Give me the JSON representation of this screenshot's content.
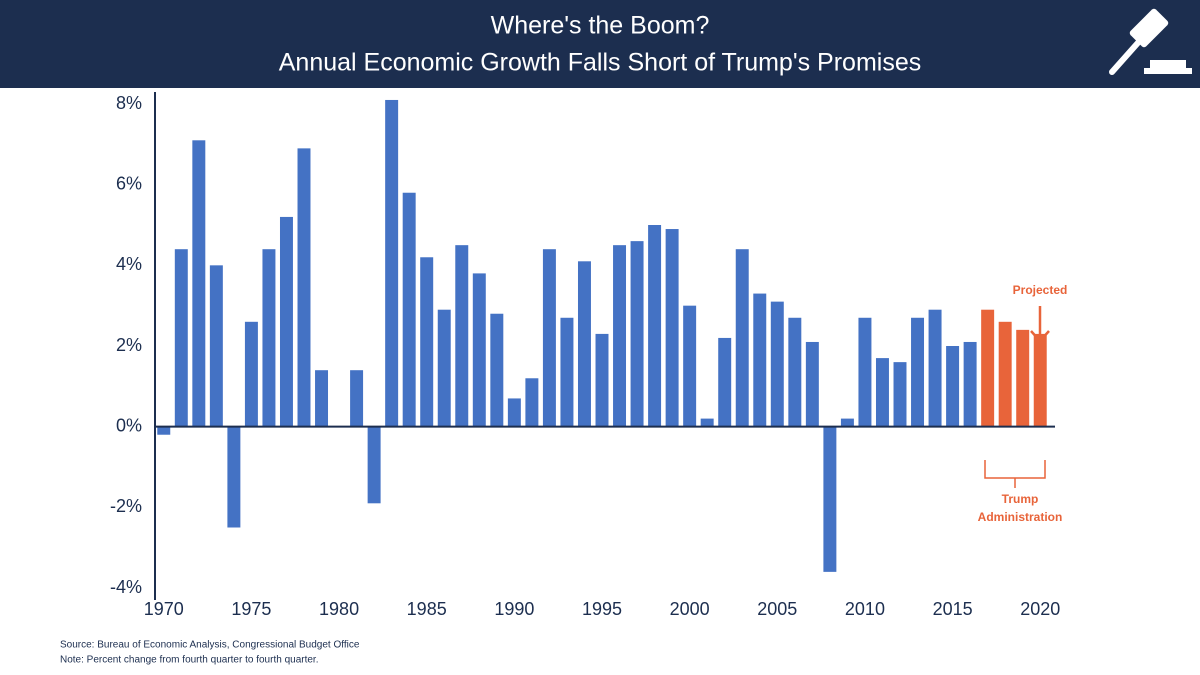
{
  "chart_data": {
    "type": "bar",
    "title": "Where's the Boom?",
    "subtitle": "Annual Economic Growth Falls Short of Trump's Promises",
    "x": [
      1970,
      1971,
      1972,
      1973,
      1974,
      1975,
      1976,
      1977,
      1978,
      1979,
      1980,
      1981,
      1982,
      1983,
      1984,
      1985,
      1986,
      1987,
      1988,
      1989,
      1990,
      1991,
      1992,
      1993,
      1994,
      1995,
      1996,
      1997,
      1998,
      1999,
      2000,
      2001,
      2002,
      2003,
      2004,
      2005,
      2006,
      2007,
      2008,
      2009,
      2010,
      2011,
      2012,
      2013,
      2014,
      2015,
      2016,
      2017,
      2018,
      2019,
      2020
    ],
    "values": [
      -0.2,
      4.4,
      7.1,
      4.0,
      -2.5,
      2.6,
      4.4,
      5.2,
      6.9,
      1.4,
      0,
      1.4,
      -1.9,
      8.1,
      5.8,
      4.2,
      2.9,
      4.5,
      3.8,
      2.8,
      0.7,
      1.2,
      4.4,
      2.7,
      4.1,
      2.3,
      4.5,
      4.6,
      5.0,
      4.9,
      3.0,
      0.2,
      2.2,
      4.4,
      3.3,
      3.1,
      2.7,
      2.1,
      -3.6,
      0.2,
      2.7,
      1.7,
      1.6,
      2.7,
      2.9,
      2.0,
      2.1,
      2.9,
      2.6,
      2.4,
      2.3
    ],
    "colors": [
      "#4472c4",
      "#4472c4",
      "#4472c4",
      "#4472c4",
      "#4472c4",
      "#4472c4",
      "#4472c4",
      "#4472c4",
      "#4472c4",
      "#4472c4",
      "#4472c4",
      "#4472c4",
      "#4472c4",
      "#4472c4",
      "#4472c4",
      "#4472c4",
      "#4472c4",
      "#4472c4",
      "#4472c4",
      "#4472c4",
      "#4472c4",
      "#4472c4",
      "#4472c4",
      "#4472c4",
      "#4472c4",
      "#4472c4",
      "#4472c4",
      "#4472c4",
      "#4472c4",
      "#4472c4",
      "#4472c4",
      "#4472c4",
      "#4472c4",
      "#4472c4",
      "#4472c4",
      "#4472c4",
      "#4472c4",
      "#4472c4",
      "#4472c4",
      "#4472c4",
      "#4472c4",
      "#4472c4",
      "#4472c4",
      "#4472c4",
      "#4472c4",
      "#4472c4",
      "#4472c4",
      "#e8643a",
      "#e8643a",
      "#e8643a",
      "#e8643a"
    ],
    "xlim": [
      1969.5,
      2020.5
    ],
    "xticks": [
      1970,
      1975,
      1980,
      1985,
      1990,
      1995,
      2000,
      2005,
      2010,
      2015,
      2020
    ],
    "ylim": [
      -4,
      8
    ],
    "yticks": [
      {
        "value": -4,
        "label": "-4%"
      },
      {
        "value": -2,
        "label": "-2%"
      },
      {
        "value": 0,
        "label": "0%"
      },
      {
        "value": 2,
        "label": "2%"
      },
      {
        "value": 4,
        "label": "4%"
      },
      {
        "value": 6,
        "label": "6%"
      },
      {
        "value": 8,
        "label": "8%"
      }
    ],
    "grid": false,
    "annotations": [
      "Projected",
      "Trump",
      "Administration"
    ],
    "source": "Source: Bureau of Economic Analysis, Congressional Budget Office",
    "note": "Note: Percent change from fourth quarter to fourth quarter."
  }
}
